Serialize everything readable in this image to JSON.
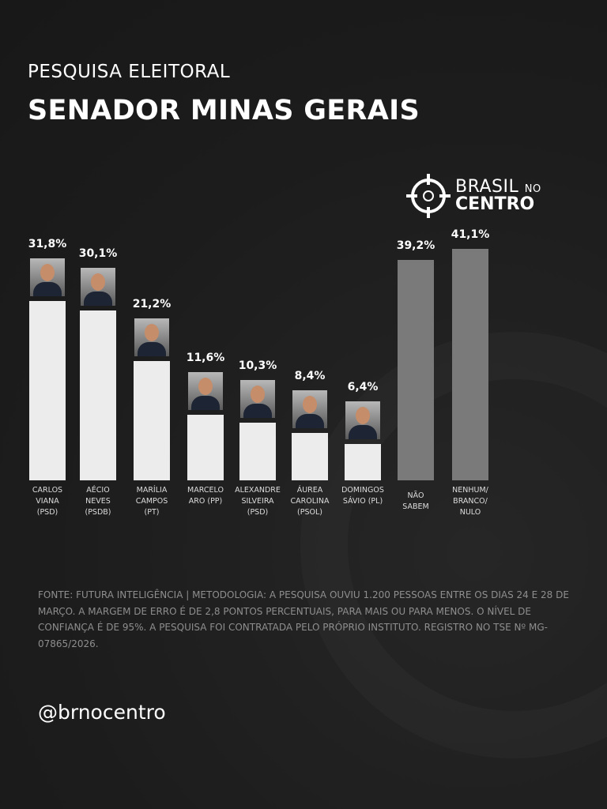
{
  "header": {
    "subtitle": "PESQUISA ELEITORAL",
    "title": "SENADOR MINAS GERAIS"
  },
  "logo": {
    "line1": "BRASIL",
    "line1_small": "NO",
    "line2": "CENTRO",
    "icon": "crosshair-icon"
  },
  "chart_data": {
    "type": "bar",
    "categories": [
      "CARLOS VIANA (PSD)",
      "AÉCIO NEVES (PSDB)",
      "MARÍLIA CAMPOS (PT)",
      "MARCELO ARO (PP)",
      "ALEXANDRE SILVEIRA (PSD)",
      "ÁUREA CAROLINA (PSOL)",
      "DOMINGOS SÁVIO (PL)",
      "NÃO SABEM",
      "NENHUM/ BRANCO/ NULO"
    ],
    "category_lines": [
      [
        "CARLOS",
        "VIANA",
        "(PSD)"
      ],
      [
        "AÉCIO",
        "NEVES",
        "(PSDB)"
      ],
      [
        "MARÍLIA",
        "CAMPOS",
        "(PT)"
      ],
      [
        "MARCELO",
        "ARO (PP)"
      ],
      [
        "ALEXANDRE",
        "SILVEIRA",
        "(PSD)"
      ],
      [
        "ÁUREA",
        "CAROLINA",
        "(PSOL)"
      ],
      [
        "DOMINGOS",
        "SÁVIO (PL)"
      ],
      [
        "NÃO",
        "SABEM"
      ],
      [
        "NENHUM/",
        "BRANCO/",
        "NULO"
      ]
    ],
    "values": [
      31.8,
      30.1,
      21.2,
      11.6,
      10.3,
      8.4,
      6.4,
      39.2,
      41.1
    ],
    "labels": [
      "31,8%",
      "30,1%",
      "21,2%",
      "11,6%",
      "10,3%",
      "8,4%",
      "6,4%",
      "39,2%",
      "41,1%"
    ],
    "has_photo": [
      true,
      true,
      true,
      true,
      true,
      true,
      true,
      false,
      false
    ],
    "colors": {
      "candidate": "#ececec",
      "other": "#7a7a7a"
    },
    "ylim": [
      0,
      42
    ],
    "grid": false
  },
  "footnote": "FONTE: FUTURA INTELIGÊNCIA | METODOLOGIA: A PESQUISA OUVIU 1.200 PESSOAS ENTRE OS DIAS 24 E 28 DE MARÇO. A MARGEM DE ERRO É DE 2,8 PONTOS PERCENTUAIS, PARA MAIS OU PARA MENOS. O NÍVEL DE CONFIANÇA É DE 95%. A PESQUISA FOI CONTRATADA PELO PRÓPRIO INSTITUTO. REGISTRO NO TSE Nº MG-07865/2026.",
  "handle": "@brnocentro"
}
